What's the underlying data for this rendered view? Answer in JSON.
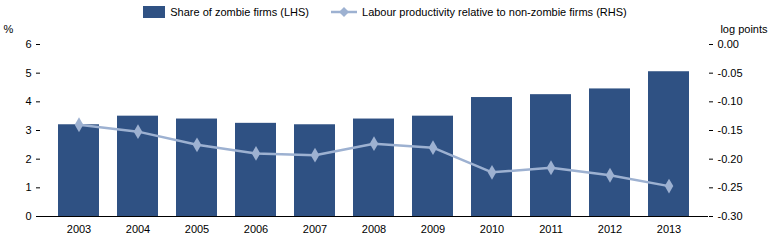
{
  "chart_data": {
    "type": "bar",
    "categories": [
      "2003",
      "2004",
      "2005",
      "2006",
      "2007",
      "2008",
      "2009",
      "2010",
      "2011",
      "2012",
      "2013"
    ],
    "series": [
      {
        "name": "Share of zombie firms (LHS)",
        "type": "bar",
        "color": "#2f5183",
        "values": [
          3.2,
          3.5,
          3.4,
          3.25,
          3.2,
          3.4,
          3.5,
          4.15,
          4.25,
          4.45,
          5.05
        ]
      },
      {
        "name": "Labour productivity relative to non-zombie firms (RHS)",
        "type": "line",
        "axis": "y2",
        "color": "#9db1d1",
        "marker": "diamond",
        "values": [
          -0.14,
          -0.152,
          -0.175,
          -0.19,
          -0.193,
          -0.173,
          -0.18,
          -0.223,
          -0.215,
          -0.228,
          -0.247
        ]
      }
    ],
    "ylabel": "%",
    "y2label": "log points",
    "ylim": [
      0,
      6
    ],
    "yticks": [
      0,
      1,
      2,
      3,
      4,
      5,
      6
    ],
    "y2lim": [
      -0.3,
      0
    ],
    "y2ticks": [
      {
        "value": 0,
        "label": "0.00"
      },
      -0.05,
      {
        "value": -0.1,
        "label": "-0.10"
      },
      -0.15,
      {
        "value": -0.2,
        "label": "-0.20"
      },
      -0.25,
      {
        "value": -0.3,
        "label": "-0.30"
      }
    ],
    "grid": false,
    "legend": "top"
  }
}
